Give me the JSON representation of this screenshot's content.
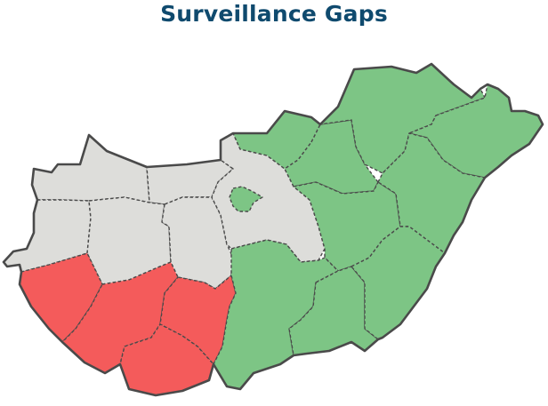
{
  "title": "Surveillance Gaps",
  "colors": {
    "title": "#0f4a6e",
    "gap": "#f45b5b",
    "covered": "#7dc585",
    "neutral": "#ddddda",
    "border": "#4a4a4a"
  },
  "regions": [
    {
      "id": "gyor-moson-sopron",
      "status": "neutral"
    },
    {
      "id": "komarom-esztergom",
      "status": "neutral"
    },
    {
      "id": "vas",
      "status": "neutral"
    },
    {
      "id": "veszprem",
      "status": "neutral"
    },
    {
      "id": "fejer",
      "status": "neutral"
    },
    {
      "id": "pest",
      "status": "neutral"
    },
    {
      "id": "zala",
      "status": "gap"
    },
    {
      "id": "somogy",
      "status": "gap"
    },
    {
      "id": "tolna",
      "status": "gap"
    },
    {
      "id": "baranya",
      "status": "gap"
    },
    {
      "id": "budapest",
      "status": "covered"
    },
    {
      "id": "nograd",
      "status": "covered"
    },
    {
      "id": "heves",
      "status": "covered"
    },
    {
      "id": "borsod-abauj-zemplen",
      "status": "covered"
    },
    {
      "id": "szabolcs-szatmar-bereg",
      "status": "covered"
    },
    {
      "id": "jasz-nagykun-szolnok",
      "status": "covered"
    },
    {
      "id": "hajdu-bihar",
      "status": "covered"
    },
    {
      "id": "bacs-kiskun",
      "status": "covered"
    },
    {
      "id": "csongrad",
      "status": "covered"
    },
    {
      "id": "bekes",
      "status": "covered"
    }
  ]
}
